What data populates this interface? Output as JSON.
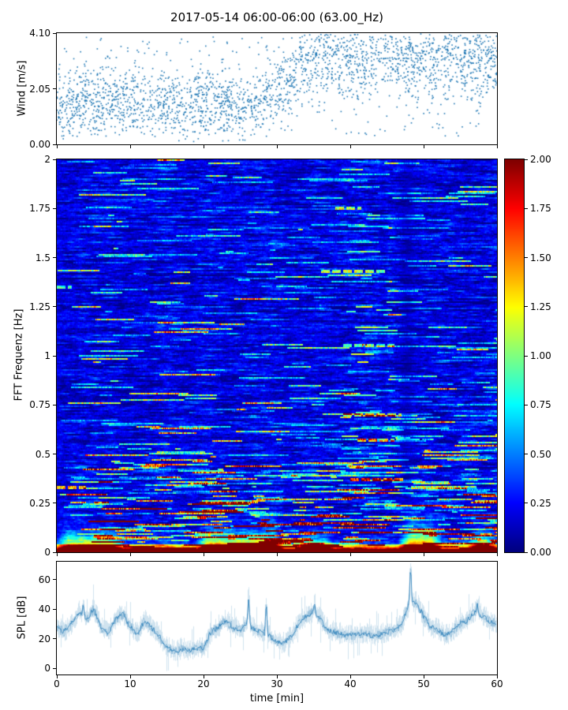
{
  "title": "2017-05-14 06:00-06:00 (63.00_Hz)",
  "colors": {
    "accent": "#1f77b4",
    "background": "#ffffff",
    "axis": "#000000"
  },
  "chart_data": [
    {
      "id": "wind",
      "type": "scatter",
      "ylabel": "Wind [m/s]",
      "ylim": [
        0.0,
        4.1
      ],
      "xlim": [
        0,
        60
      ],
      "yticks": [
        {
          "v": 4.1,
          "label": "4.10"
        },
        {
          "v": 2.05,
          "label": "2.05"
        },
        {
          "v": 0.0,
          "label": "0.00"
        }
      ],
      "marker_color": "#1f77b4",
      "n_points": 2600,
      "mean_low": 1.5,
      "mean_high": 2.85,
      "transition_t": [
        28,
        34
      ],
      "sparse_window": [
        43.5,
        47.0
      ],
      "note": "dense scatter band 0.5-3 m/s before ~30 min, shifting to 2.5-4.1 m/s after ~30 min, sparse gap near 44-46 min"
    },
    {
      "id": "spectrogram",
      "type": "heatmap",
      "ylabel": "FFT Frequenz [Hz]",
      "ylim": [
        0,
        2
      ],
      "xlim": [
        0,
        60
      ],
      "colormap": "jet",
      "clim": [
        0,
        2
      ],
      "base_level": 0.2,
      "yticks": [
        {
          "v": 2,
          "label": "2"
        },
        {
          "v": 1.75,
          "label": "1.75"
        },
        {
          "v": 1.5,
          "label": "1.5"
        },
        {
          "v": 1.25,
          "label": "1.25"
        },
        {
          "v": 1,
          "label": "1"
        },
        {
          "v": 0.75,
          "label": "0.75"
        },
        {
          "v": 0.5,
          "label": "0.5"
        },
        {
          "v": 0.25,
          "label": "0.25"
        },
        {
          "v": 0,
          "label": "0"
        }
      ],
      "colorbar_ticks": [
        {
          "v": 2.0,
          "label": "2.00"
        },
        {
          "v": 1.75,
          "label": "1.75"
        },
        {
          "v": 1.5,
          "label": "1.50"
        },
        {
          "v": 1.25,
          "label": "1.25"
        },
        {
          "v": 1.0,
          "label": "1.00"
        },
        {
          "v": 0.75,
          "label": "0.75"
        },
        {
          "v": 0.5,
          "label": "0.50"
        },
        {
          "v": 0.25,
          "label": "0.25"
        },
        {
          "v": 0.0,
          "label": "0.00"
        }
      ],
      "bottom_band": {
        "fmax": 0.04,
        "value": 2.0
      },
      "low_freq_blobs": [
        {
          "t0": 0,
          "t1": 9,
          "fmax": 0.1,
          "amp": 1.7
        },
        {
          "t0": 19,
          "t1": 31,
          "fmax": 0.11,
          "amp": 1.8
        },
        {
          "t0": 33,
          "t1": 38,
          "fmax": 0.08,
          "amp": 1.5
        },
        {
          "t0": 46.5,
          "t1": 52.5,
          "fmax": 0.14,
          "amp": 2.0
        },
        {
          "t0": 56,
          "t1": 60,
          "fmax": 0.1,
          "amp": 1.7
        }
      ],
      "streak_features": [
        {
          "f": 1.75,
          "t0": 38,
          "t1": 41.5,
          "amp": 0.85
        },
        {
          "f": 1.43,
          "t0": 36,
          "t1": 45,
          "amp": 0.9
        },
        {
          "f": 1.05,
          "t0": 39,
          "t1": 46,
          "amp": 0.75
        },
        {
          "f": 0.7,
          "t0": 39,
          "t1": 47,
          "amp": 0.95
        },
        {
          "f": 0.57,
          "t0": 41,
          "t1": 46,
          "amp": 1.05
        },
        {
          "f": 0.37,
          "t0": 40,
          "t1": 47.5,
          "amp": 1.7
        },
        {
          "f": 0.33,
          "t0": 0,
          "t1": 4,
          "amp": 1.2
        },
        {
          "f": 1.35,
          "t0": 0,
          "t1": 2,
          "amp": 0.7
        }
      ],
      "dark_columns": [
        {
          "t": 31.3,
          "w": 0.6,
          "mult": 0.8
        },
        {
          "t": 47.7,
          "w": 1.3,
          "mult": 0.55
        },
        {
          "t": 44.3,
          "w": 0.5,
          "mult": 0.8
        }
      ],
      "active_window": {
        "t0": 38,
        "t1": 48,
        "f0": 0.3,
        "f1": 1.85,
        "extra": 0.25
      }
    },
    {
      "id": "spl",
      "type": "line",
      "ylabel": "SPL [dB]",
      "xlabel": "time [min]",
      "ylim": [
        -4,
        72
      ],
      "xlim": [
        0,
        60
      ],
      "yticks": [
        {
          "v": 60,
          "label": "60"
        },
        {
          "v": 40,
          "label": "40"
        },
        {
          "v": 20,
          "label": "20"
        },
        {
          "v": 0,
          "label": "0"
        }
      ],
      "xticks": [
        {
          "v": 0,
          "label": "0"
        },
        {
          "v": 10,
          "label": "10"
        },
        {
          "v": 20,
          "label": "20"
        },
        {
          "v": 30,
          "label": "30"
        },
        {
          "v": 40,
          "label": "40"
        },
        {
          "v": 50,
          "label": "50"
        },
        {
          "v": 60,
          "label": "60"
        }
      ],
      "line_color": "#1f77b4",
      "series": [
        {
          "name": "SPL",
          "x0": 0,
          "dx_min": 1,
          "values": [
            27,
            25,
            30,
            38,
            32,
            40,
            28,
            24,
            33,
            37,
            28,
            24,
            32,
            27,
            22,
            14,
            12,
            13,
            12,
            13,
            14,
            24,
            28,
            32,
            28,
            26,
            30,
            26,
            24,
            22,
            18,
            17,
            22,
            30,
            35,
            38,
            33,
            26,
            24,
            23,
            22,
            23,
            24,
            22,
            23,
            24,
            26,
            29,
            42,
            45,
            36,
            28,
            26,
            22,
            25,
            30,
            32,
            38,
            36,
            32,
            30
          ]
        }
      ],
      "spikes": [
        {
          "t": 3.6,
          "v": 45
        },
        {
          "t": 26.2,
          "v": 48
        },
        {
          "t": 28.6,
          "v": 43
        },
        {
          "t": 35.2,
          "v": 43
        },
        {
          "t": 48.3,
          "v": 68
        },
        {
          "t": 57.4,
          "v": 43
        }
      ],
      "peak": {
        "t": 48.3,
        "value": 68
      }
    }
  ]
}
